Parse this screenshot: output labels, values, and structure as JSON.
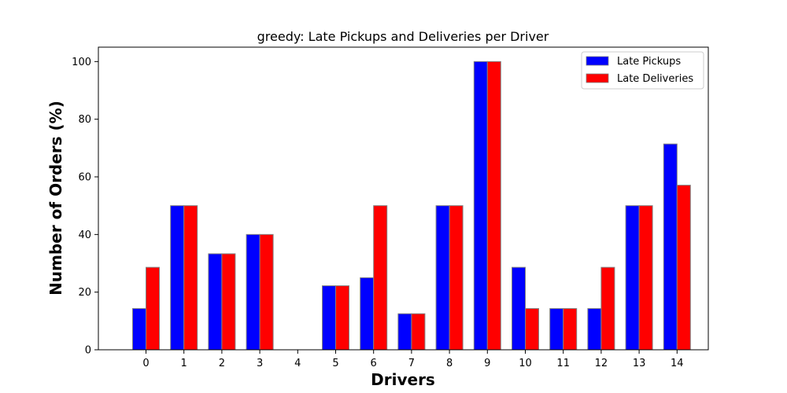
{
  "chart_data": {
    "type": "bar",
    "title": "greedy: Late Pickups and Deliveries per Driver",
    "xlabel": "Drivers",
    "ylabel": "Number of Orders (%)",
    "categories": [
      "0",
      "1",
      "2",
      "3",
      "4",
      "5",
      "6",
      "7",
      "8",
      "9",
      "10",
      "11",
      "12",
      "13",
      "14"
    ],
    "series": [
      {
        "name": "Late Pickups",
        "color": "#0000ff",
        "values": [
          14.3,
          50,
          33.3,
          40,
          0,
          22.2,
          25,
          12.5,
          50,
          100,
          28.6,
          14.3,
          14.3,
          50,
          71.4
        ]
      },
      {
        "name": "Late Deliveries",
        "color": "#ff0000",
        "values": [
          28.6,
          50,
          33.3,
          40,
          0,
          22.2,
          50,
          12.5,
          50,
          100,
          14.3,
          14.3,
          28.6,
          50,
          57.1
        ]
      }
    ],
    "ylim": [
      0,
      105
    ],
    "yticks": [
      0,
      20,
      40,
      60,
      80,
      100
    ],
    "bar_edge_color": "#808080",
    "grid": false,
    "legend_position": "top-right"
  }
}
